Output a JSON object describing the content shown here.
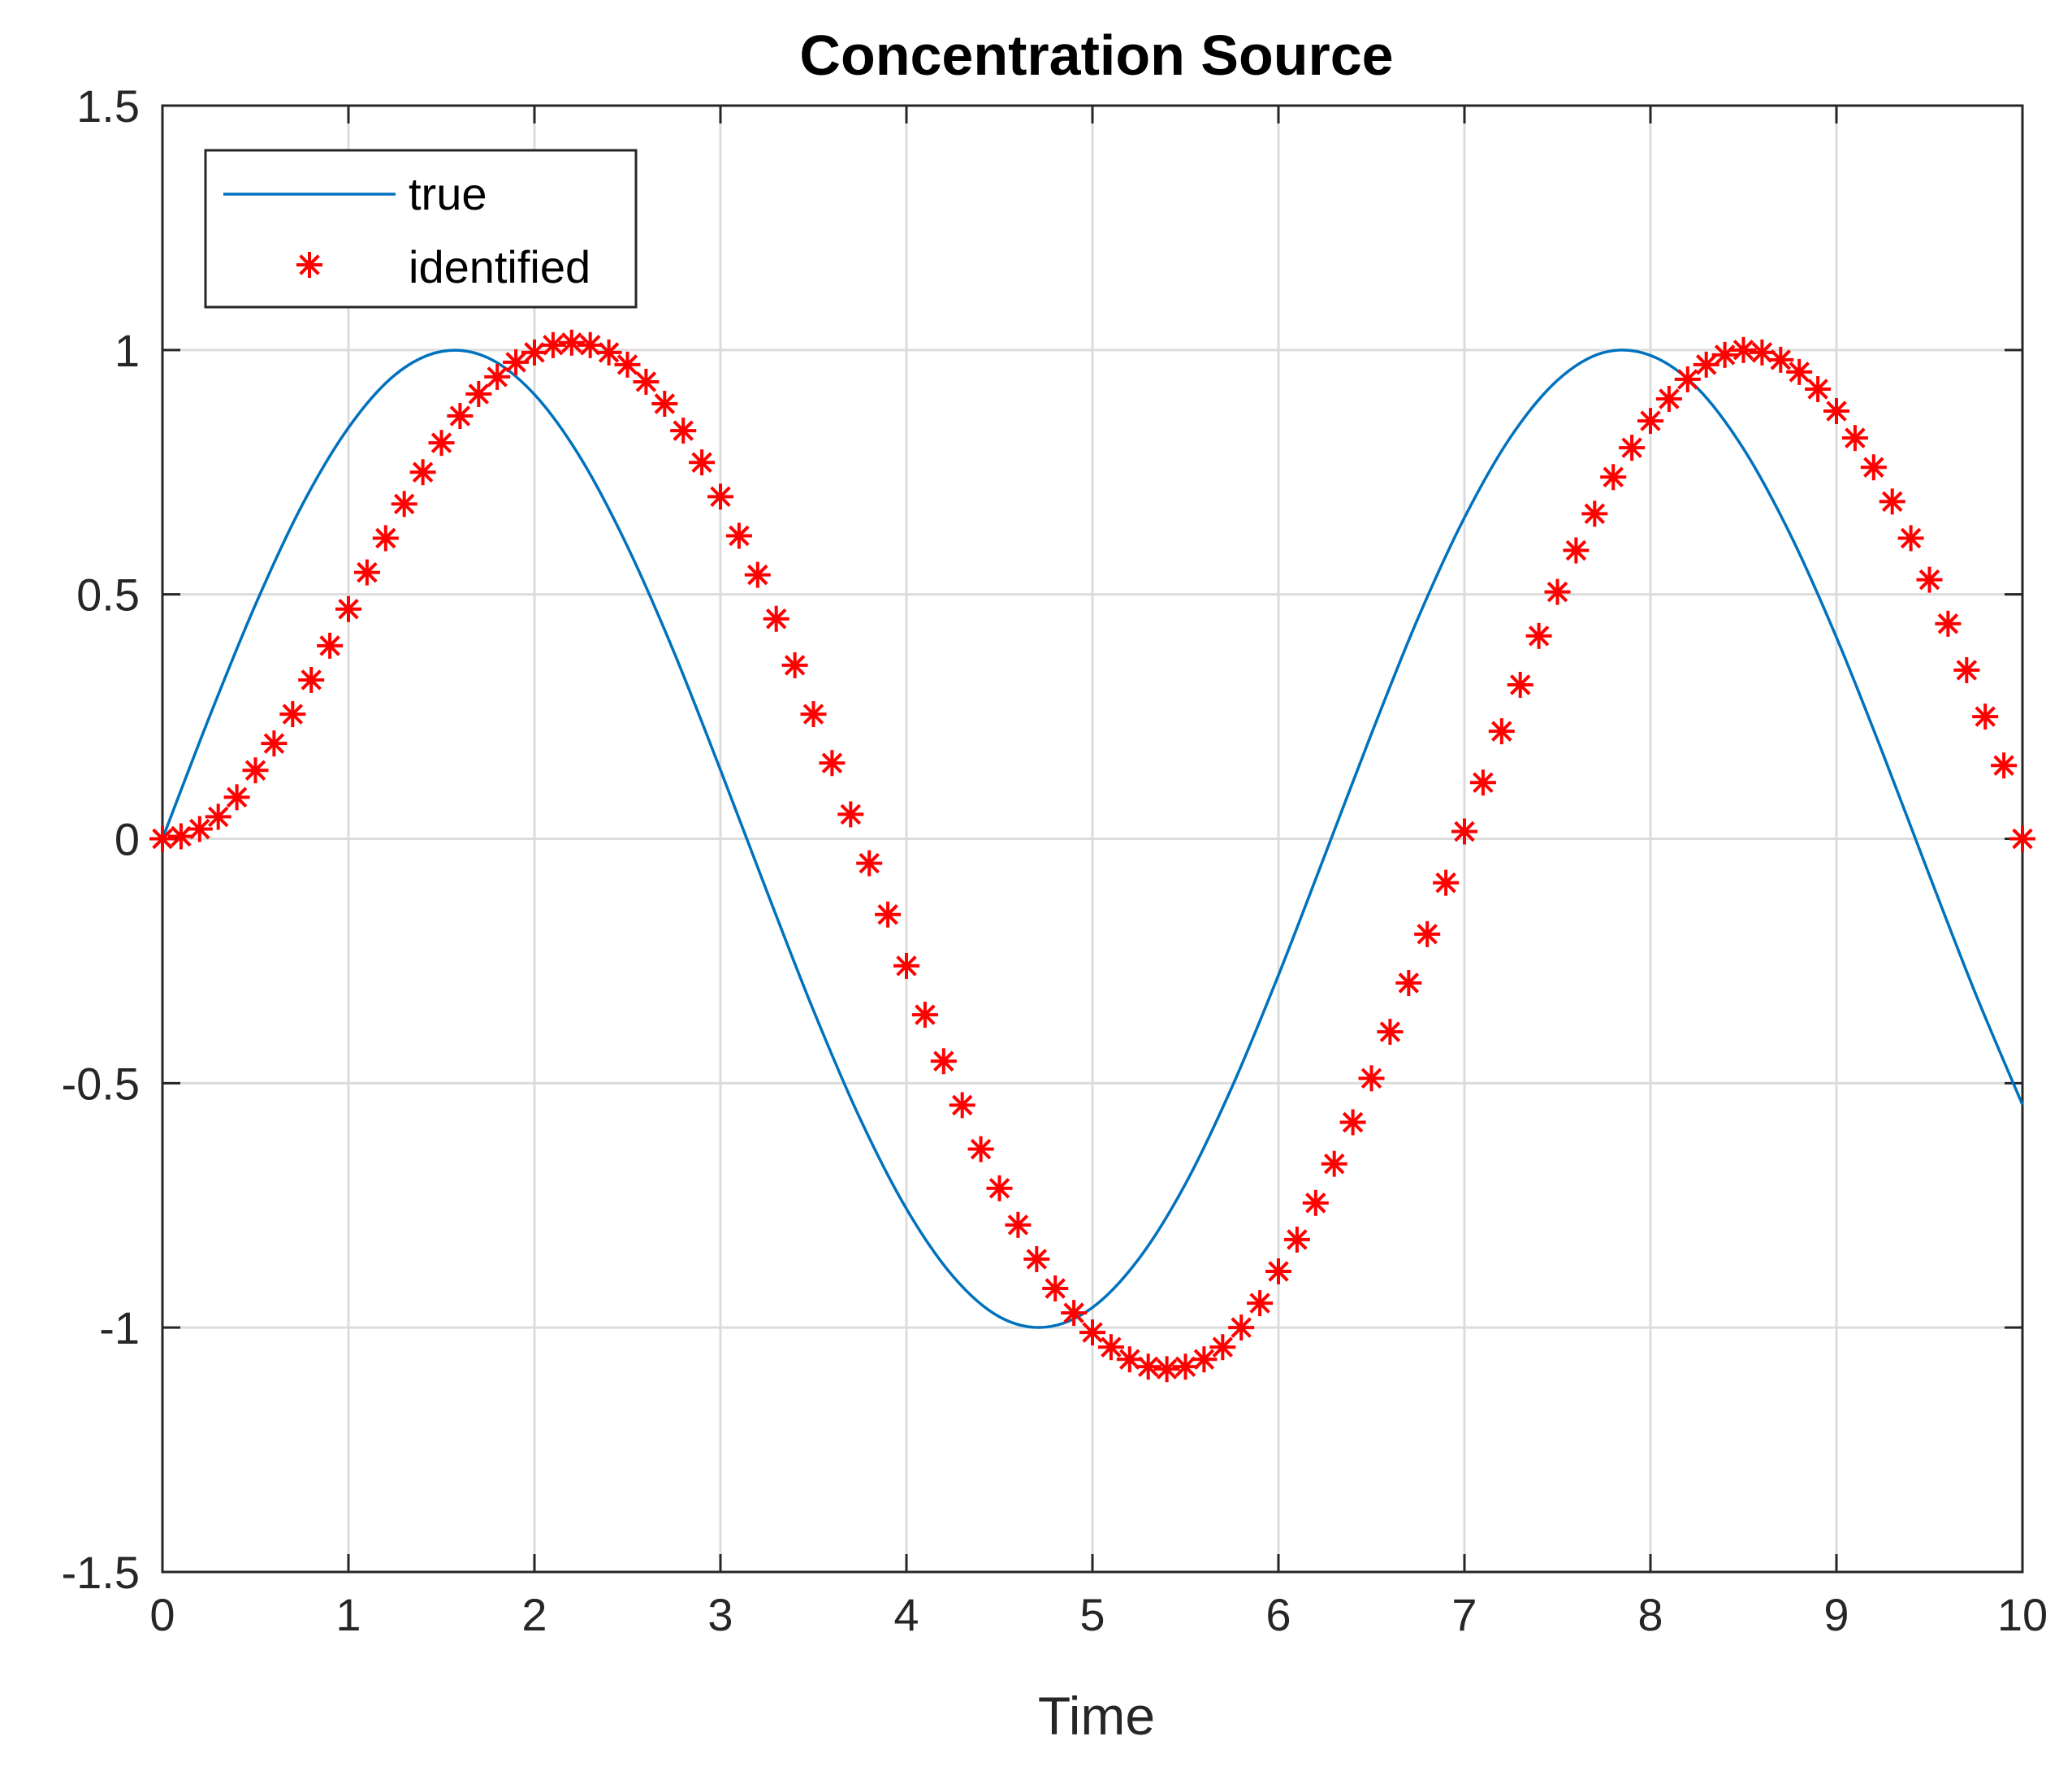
{
  "chart_data": {
    "type": "line",
    "title": "Concentration Source",
    "xlabel": "Time",
    "ylabel": "",
    "xlim": [
      0,
      10
    ],
    "ylim": [
      -1.5,
      1.5
    ],
    "xticks": [
      0,
      1,
      2,
      3,
      4,
      5,
      6,
      7,
      8,
      9,
      10
    ],
    "xtick_labels": [
      "0",
      "1",
      "2",
      "3",
      "4",
      "5",
      "6",
      "7",
      "8",
      "9",
      "10"
    ],
    "yticks": [
      -1.5,
      -1,
      -0.5,
      0,
      0.5,
      1,
      1.5
    ],
    "ytick_labels": [
      "-1.5",
      "-1",
      "-0.5",
      "0",
      "0.5",
      "1",
      "1.5"
    ],
    "grid": true,
    "legend_position": "top-left",
    "series": [
      {
        "name": "true",
        "style": "line",
        "color": "#0072BD",
        "x": [
          0,
          0.25,
          0.5,
          0.75,
          1,
          1.25,
          1.5,
          1.75,
          2,
          2.25,
          2.5,
          2.75,
          3,
          3.25,
          3.5,
          3.75,
          4,
          4.25,
          4.5,
          4.75,
          5,
          5.25,
          5.5,
          5.75,
          6,
          6.25,
          6.5,
          6.75,
          7,
          7.25,
          7.5,
          7.75,
          8,
          8.25,
          8.5,
          8.75,
          9,
          9.25,
          9.5,
          9.75,
          10
        ],
        "y": [
          0,
          0.247,
          0.479,
          0.682,
          0.841,
          0.949,
          0.997,
          0.984,
          0.909,
          0.778,
          0.598,
          0.382,
          0.141,
          -0.108,
          -0.351,
          -0.572,
          -0.757,
          -0.895,
          -0.978,
          -0.999,
          -0.959,
          -0.859,
          -0.706,
          -0.508,
          -0.279,
          -0.033,
          0.215,
          0.451,
          0.657,
          0.823,
          0.938,
          0.995,
          0.989,
          0.923,
          0.798,
          0.624,
          0.412,
          0.174,
          -0.075,
          -0.319,
          -0.544
        ]
      },
      {
        "name": "identified",
        "style": "markers",
        "marker": "asterisk",
        "color": "#FF0000",
        "x": [
          0,
          0.1,
          0.2,
          0.3,
          0.4,
          0.5,
          0.6,
          0.7,
          0.8,
          0.9,
          1,
          1.1,
          1.2,
          1.3,
          1.4,
          1.5,
          1.6,
          1.7,
          1.8,
          1.9,
          2,
          2.1,
          2.2,
          2.3,
          2.4,
          2.5,
          2.6,
          2.7,
          2.8,
          2.9,
          3,
          3.1,
          3.2,
          3.3,
          3.4,
          3.5,
          3.6,
          3.7,
          3.8,
          3.9,
          4,
          4.1,
          4.2,
          4.3,
          4.4,
          4.5,
          4.6,
          4.7,
          4.8,
          4.9,
          5,
          5.1,
          5.2,
          5.3,
          5.4,
          5.5,
          5.6,
          5.7,
          5.8,
          5.9,
          6,
          6.1,
          6.2,
          6.3,
          6.4,
          6.5,
          6.6,
          6.7,
          6.8,
          6.9,
          7,
          7.1,
          7.2,
          7.3,
          7.4,
          7.5,
          7.6,
          7.7,
          7.8,
          7.9,
          8,
          8.1,
          8.2,
          8.3,
          8.4,
          8.5,
          8.6,
          8.7,
          8.8,
          8.9,
          9,
          9.1,
          9.2,
          9.3,
          9.4,
          9.5,
          9.6,
          9.7,
          9.8,
          9.9,
          10
        ],
        "y": [
          0,
          0.005,
          0.02,
          0.045,
          0.085,
          0.14,
          0.195,
          0.255,
          0.325,
          0.395,
          0.47,
          0.545,
          0.615,
          0.685,
          0.75,
          0.81,
          0.865,
          0.91,
          0.945,
          0.975,
          0.995,
          1.01,
          1.015,
          1.01,
          0.995,
          0.97,
          0.935,
          0.89,
          0.835,
          0.77,
          0.7,
          0.62,
          0.54,
          0.45,
          0.355,
          0.255,
          0.155,
          0.05,
          -0.05,
          -0.155,
          -0.26,
          -0.36,
          -0.455,
          -0.545,
          -0.635,
          -0.715,
          -0.79,
          -0.86,
          -0.92,
          -0.97,
          -1.01,
          -1.04,
          -1.065,
          -1.08,
          -1.085,
          -1.08,
          -1.065,
          -1.04,
          -1.0,
          -0.95,
          -0.885,
          -0.82,
          -0.745,
          -0.665,
          -0.58,
          -0.49,
          -0.395,
          -0.295,
          -0.195,
          -0.09,
          0.015,
          0.115,
          0.22,
          0.315,
          0.415,
          0.505,
          0.59,
          0.665,
          0.74,
          0.8,
          0.855,
          0.9,
          0.94,
          0.97,
          0.99,
          1.0,
          0.995,
          0.98,
          0.955,
          0.92,
          0.875,
          0.82,
          0.76,
          0.69,
          0.615,
          0.53,
          0.44,
          0.345,
          0.25,
          0.15,
          0
        ]
      }
    ]
  }
}
